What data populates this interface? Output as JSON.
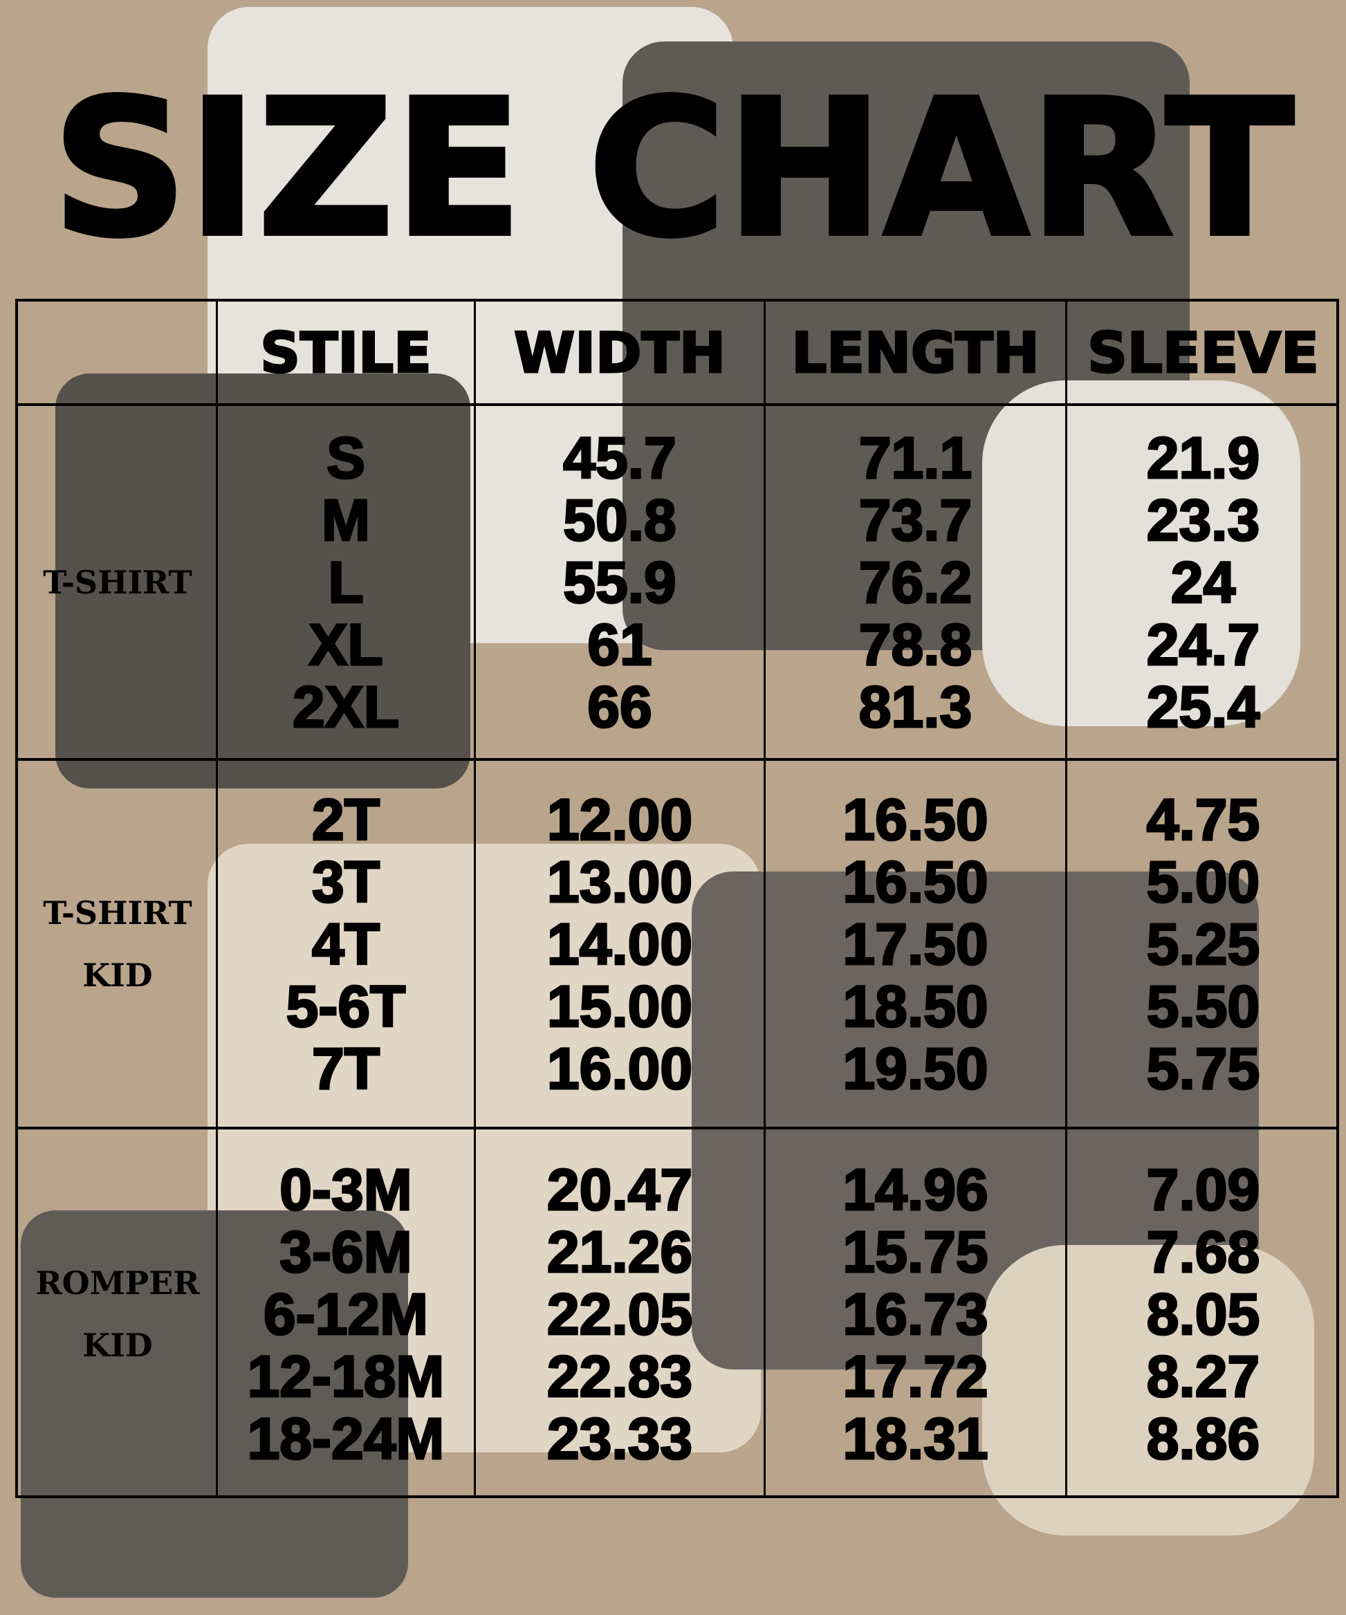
{
  "title": "SIZE CHART",
  "columns": [
    "STILE",
    "WIDTH",
    "LENGTH",
    "SLEEVE"
  ],
  "sections": [
    {
      "category": [
        "T-SHIRT"
      ],
      "sizes": [
        "S",
        "M",
        "L",
        "XL",
        "2XL"
      ],
      "width": [
        "45.7",
        "50.8",
        "55.9",
        "61",
        "66"
      ],
      "length": [
        "71.1",
        "73.7",
        "76.2",
        "78.8",
        "81.3"
      ],
      "sleeve": [
        "21.9",
        "23.3",
        "24",
        "24.7",
        "25.4"
      ]
    },
    {
      "category": [
        "T-SHIRT",
        "KID"
      ],
      "sizes": [
        "2T",
        "3T",
        "4T",
        "5-6T",
        "7T"
      ],
      "width": [
        "12.00",
        "13.00",
        "14.00",
        "15.00",
        "16.00"
      ],
      "length": [
        "16.50",
        "16.50",
        "17.50",
        "18.50",
        "19.50"
      ],
      "sleeve": [
        "4.75",
        "5.00",
        "5.25",
        "5.50",
        "5.75"
      ]
    },
    {
      "category": [
        "ROMPER",
        "KID"
      ],
      "sizes": [
        "0-3M",
        "3-6M",
        "6-12M",
        "12-18M",
        "18-24M"
      ],
      "width": [
        "20.47",
        "21.26",
        "22.05",
        "22.83",
        "23.33"
      ],
      "length": [
        "14.96",
        "15.75",
        "16.73",
        "17.72",
        "18.31"
      ],
      "sleeve": [
        "7.09",
        "7.68",
        "8.05",
        "8.27",
        "8.86"
      ]
    }
  ]
}
